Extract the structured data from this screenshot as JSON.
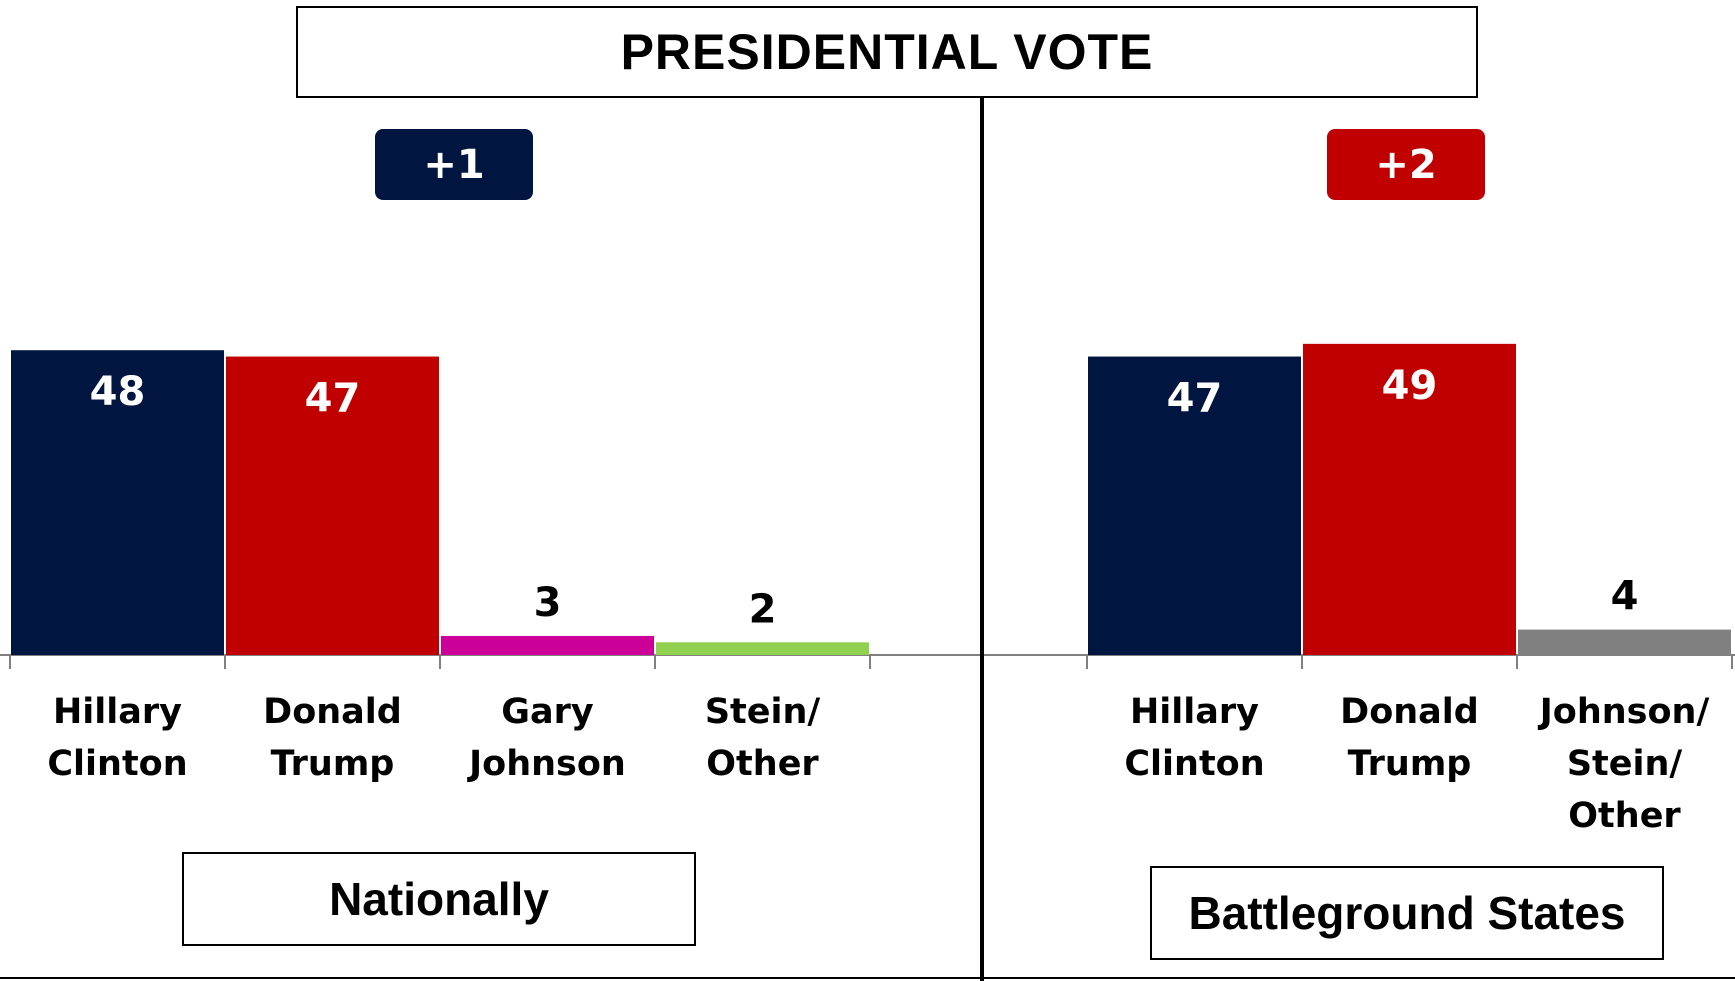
{
  "title": "PRESIDENTIAL VOTE",
  "panels": [
    {
      "name": "Nationally",
      "margin_badge": "+1",
      "badge_color": "#001641"
    },
    {
      "name": "Battleground States",
      "margin_badge": "+2",
      "badge_color": "#c00000"
    }
  ],
  "chart_data": [
    {
      "type": "bar",
      "title": "Nationally",
      "categories": [
        [
          "Hillary",
          "Clinton"
        ],
        [
          "Donald",
          "Trump"
        ],
        [
          "Gary",
          "Johnson"
        ],
        [
          "Stein/",
          "Other"
        ]
      ],
      "values": [
        48,
        47,
        3,
        2
      ],
      "colors": [
        "#001641",
        "#c00000",
        "#cc0099",
        "#92d050"
      ],
      "label_colors": [
        "#ffffff",
        "#ffffff",
        "#000000",
        "#000000"
      ],
      "ylim": [
        0,
        100
      ],
      "grid": false
    },
    {
      "type": "bar",
      "title": "Battleground States",
      "categories": [
        [
          "Hillary",
          "Clinton"
        ],
        [
          "Donald",
          "Trump"
        ],
        [
          "Johnson/",
          "Stein/",
          "Other"
        ]
      ],
      "values": [
        47,
        49,
        4
      ],
      "colors": [
        "#001641",
        "#c00000",
        "#808080"
      ],
      "label_colors": [
        "#ffffff",
        "#ffffff",
        "#000000"
      ],
      "ylim": [
        0,
        100
      ],
      "grid": false
    }
  ]
}
